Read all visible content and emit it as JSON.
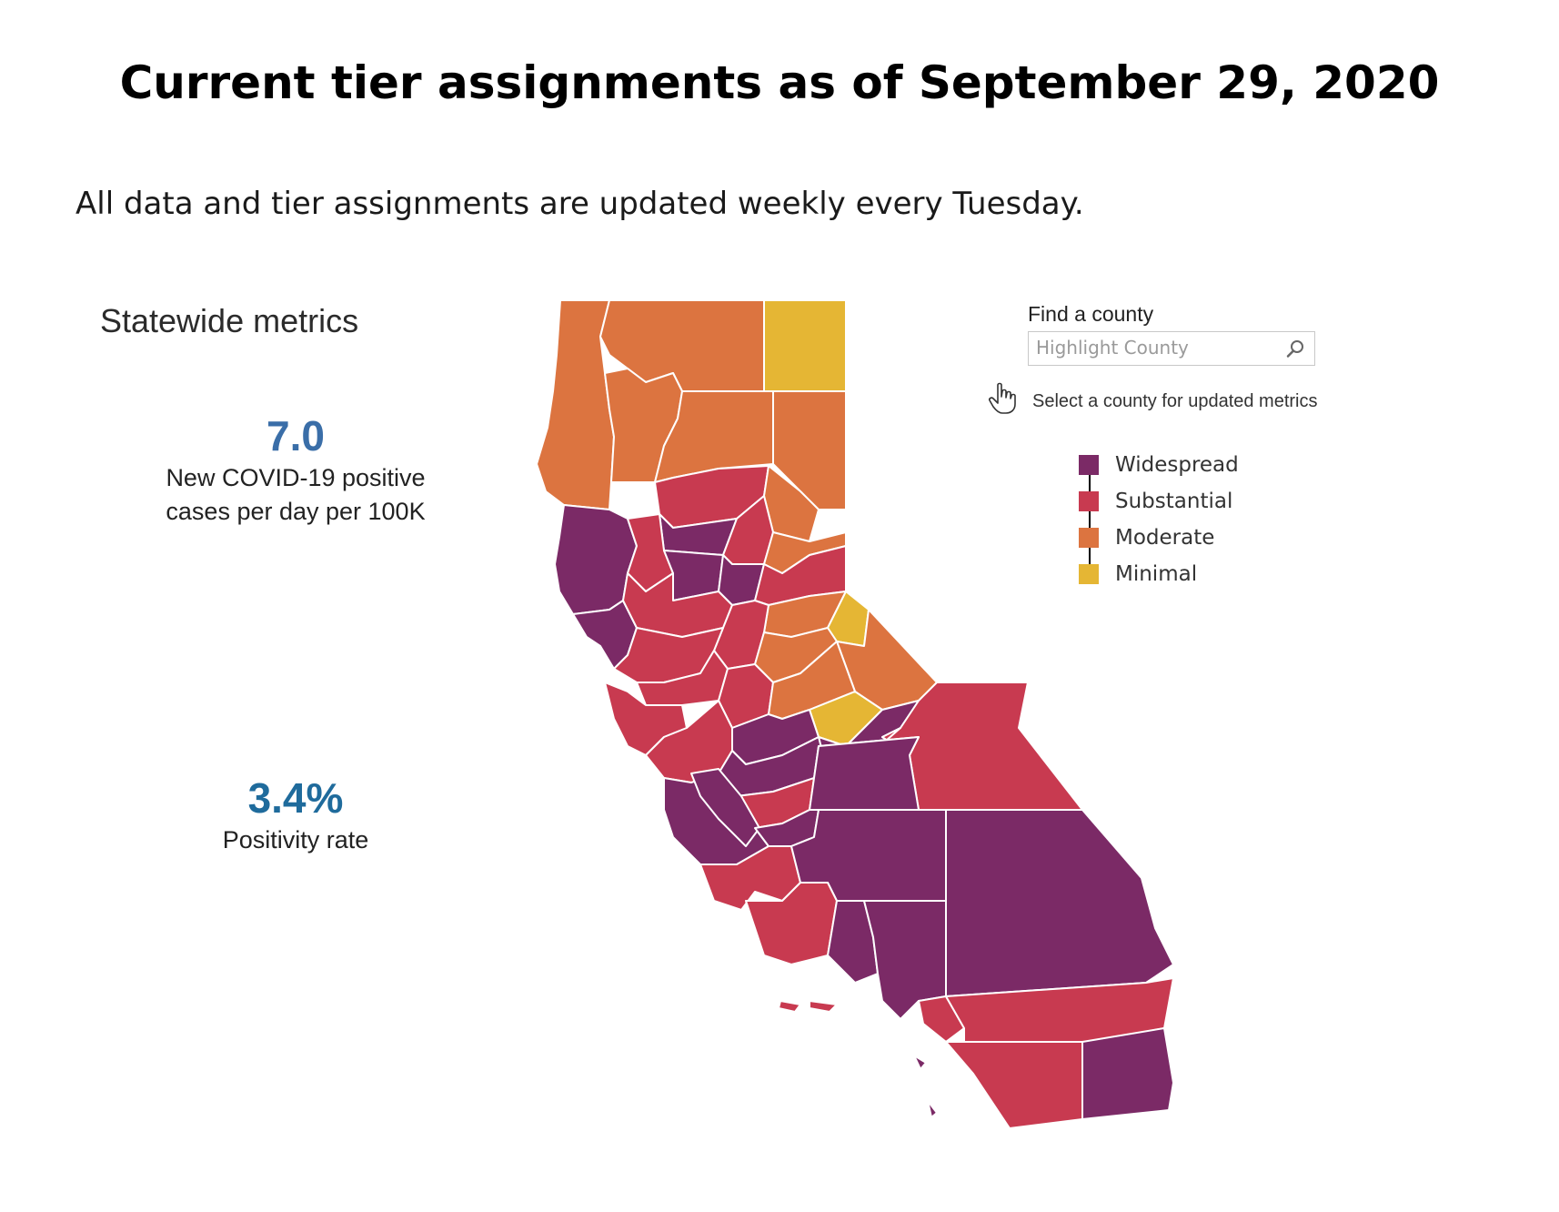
{
  "header": {
    "title": "Current tier assignments as of September 29, 2020",
    "subtitle": "All data and tier assignments are updated weekly every Tuesday."
  },
  "metrics": {
    "heading": "Statewide metrics",
    "case_rate": {
      "value": "7.0",
      "label_line1": "New COVID-19 positive",
      "label_line2": "cases per day per 100K"
    },
    "positivity": {
      "value": "3.4%",
      "label": "Positivity rate"
    }
  },
  "county_search": {
    "label": "Find a county",
    "placeholder": "Highlight County",
    "icon": "search-icon",
    "hint": "Select a county for updated metrics"
  },
  "legend": [
    {
      "name": "Widespread",
      "color": "#7b2a66"
    },
    {
      "name": "Substantial",
      "color": "#c83a50"
    },
    {
      "name": "Moderate",
      "color": "#dc7440"
    },
    {
      "name": "Minimal",
      "color": "#e5b634"
    }
  ],
  "tier_colors": {
    "widespread": "#7b2a66",
    "substantial": "#c83a50",
    "moderate": "#dc7440",
    "minimal": "#e5b634"
  }
}
